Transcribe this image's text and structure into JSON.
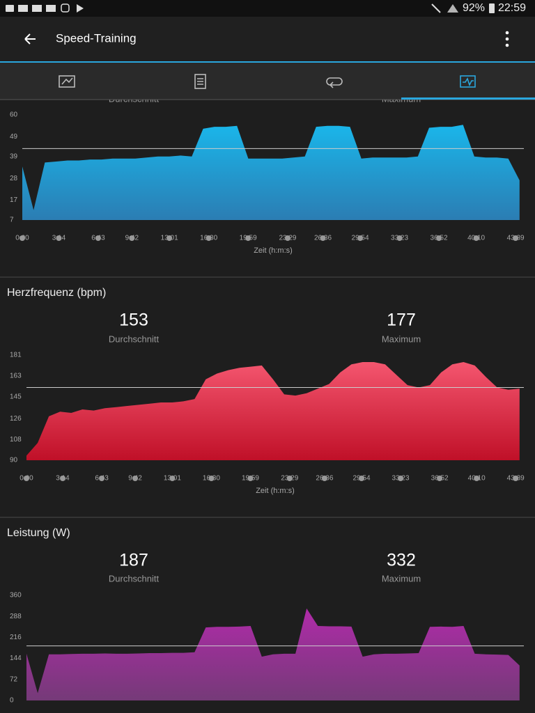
{
  "status_bar": {
    "battery": "92%",
    "time": "22:59"
  },
  "header": {
    "title": "Speed-Training"
  },
  "chart_data": [
    {
      "type": "area",
      "stat_labels": [
        "Durchschnitt",
        "Maximum"
      ],
      "x": [
        0,
        60,
        120,
        180,
        240,
        300,
        360,
        420,
        480,
        540,
        600,
        660,
        720,
        780,
        840,
        900,
        960,
        1020,
        1080,
        1140,
        1200,
        1260,
        1320,
        1380,
        1440,
        1500,
        1560,
        1620,
        1680,
        1740,
        1800,
        1860,
        1920,
        1980,
        2040,
        2100,
        2160,
        2220,
        2280,
        2340,
        2400,
        2460,
        2520,
        2580,
        2640
      ],
      "values": [
        34,
        12,
        36,
        36.5,
        37,
        37,
        37.5,
        37.5,
        38,
        38,
        38,
        38.5,
        39,
        39,
        39.5,
        39,
        53,
        54,
        54,
        54.5,
        38,
        38,
        38,
        38,
        38.5,
        39,
        54,
        54.5,
        54.5,
        54,
        38,
        38.5,
        38.5,
        38.5,
        38.5,
        39,
        53.5,
        54,
        54,
        55,
        39,
        38.5,
        38.5,
        38,
        27
      ],
      "color_top": "#1ab6ea",
      "color_bottom": "#2b7db3",
      "average_line": 43,
      "xlim": [
        0,
        2663
      ],
      "ylim": [
        7,
        60
      ],
      "yticks": [
        7,
        17,
        28,
        39,
        49,
        60
      ],
      "xticks": [
        {
          "value": 0,
          "label": "0:00"
        },
        {
          "value": 194,
          "label": "3:14"
        },
        {
          "value": 403,
          "label": "6:43"
        },
        {
          "value": 582,
          "label": "9:42"
        },
        {
          "value": 781,
          "label": "13:01"
        },
        {
          "value": 990,
          "label": "16:30"
        },
        {
          "value": 1199,
          "label": "19:59"
        },
        {
          "value": 1409,
          "label": "23:29"
        },
        {
          "value": 1596,
          "label": "26:36"
        },
        {
          "value": 1794,
          "label": "29:54"
        },
        {
          "value": 2003,
          "label": "33:23"
        },
        {
          "value": 2212,
          "label": "36:52"
        },
        {
          "value": 2410,
          "label": "40:10"
        },
        {
          "value": 2619,
          "label": "43:39"
        }
      ],
      "x_label": "Zeit (h:m:s)"
    },
    {
      "type": "area",
      "title": "Herzfrequenz (bpm)",
      "stats": [
        {
          "value": 153,
          "label": "Durchschnitt"
        },
        {
          "value": 177,
          "label": "Maximum"
        }
      ],
      "x": [
        0,
        60,
        120,
        180,
        240,
        300,
        360,
        420,
        480,
        540,
        600,
        660,
        720,
        780,
        840,
        900,
        960,
        1020,
        1080,
        1140,
        1200,
        1260,
        1320,
        1380,
        1440,
        1500,
        1560,
        1620,
        1680,
        1740,
        1800,
        1860,
        1920,
        1980,
        2040,
        2100,
        2160,
        2220,
        2280,
        2340,
        2400,
        2460,
        2520,
        2580,
        2640
      ],
      "values": [
        94,
        105,
        128,
        132,
        131,
        134,
        133,
        135,
        136,
        137,
        138,
        139,
        140,
        140,
        141,
        143,
        160,
        165,
        168,
        170,
        171,
        172,
        160,
        147,
        146,
        148,
        152,
        156,
        166,
        173,
        175,
        175,
        173,
        164,
        155,
        153,
        155,
        166,
        173,
        175,
        172,
        162,
        153,
        151,
        152
      ],
      "color_top": "#f4566f",
      "color_bottom": "#c01028",
      "xlim": [
        0,
        2663
      ],
      "ylim": [
        90,
        181
      ],
      "yticks": [
        90,
        108,
        126,
        145,
        163,
        181
      ],
      "xticks": [
        {
          "value": 0,
          "label": "0:00"
        },
        {
          "value": 194,
          "label": "3:14"
        },
        {
          "value": 403,
          "label": "6:43"
        },
        {
          "value": 582,
          "label": "9:42"
        },
        {
          "value": 781,
          "label": "13:01"
        },
        {
          "value": 990,
          "label": "16:30"
        },
        {
          "value": 1199,
          "label": "19:59"
        },
        {
          "value": 1409,
          "label": "23:29"
        },
        {
          "value": 1596,
          "label": "26:36"
        },
        {
          "value": 1794,
          "label": "29:54"
        },
        {
          "value": 2003,
          "label": "33:23"
        },
        {
          "value": 2212,
          "label": "36:52"
        },
        {
          "value": 2410,
          "label": "40:10"
        },
        {
          "value": 2619,
          "label": "43:39"
        }
      ],
      "x_label": "Zeit (h:m:s)"
    },
    {
      "type": "area",
      "title": "Leistung (W)",
      "stats": [
        {
          "value": 187,
          "label": "Durchschnitt"
        },
        {
          "value": 332,
          "label": "Maximum"
        }
      ],
      "x": [
        0,
        60,
        120,
        180,
        240,
        300,
        360,
        420,
        480,
        540,
        600,
        660,
        720,
        780,
        840,
        900,
        960,
        1020,
        1080,
        1140,
        1200,
        1260,
        1320,
        1380,
        1440,
        1500,
        1560,
        1620,
        1680,
        1740,
        1800,
        1860,
        1920,
        1980,
        2040,
        2100,
        2160,
        2220,
        2280,
        2340,
        2400,
        2460,
        2520,
        2580,
        2640
      ],
      "values": [
        160,
        25,
        158,
        158,
        159,
        160,
        160,
        161,
        160,
        160,
        161,
        162,
        162,
        163,
        163,
        165,
        250,
        252,
        252,
        253,
        255,
        150,
        158,
        160,
        160,
        315,
        255,
        254,
        254,
        253,
        150,
        158,
        160,
        160,
        161,
        162,
        252,
        253,
        252,
        255,
        160,
        158,
        157,
        156,
        120
      ],
      "color_top": "#b02ba9",
      "color_bottom": "#753a78",
      "xlim": [
        0,
        2663
      ],
      "ylim": [
        0,
        360
      ],
      "yticks": [
        0,
        72,
        144,
        216,
        288,
        360
      ]
    }
  ]
}
